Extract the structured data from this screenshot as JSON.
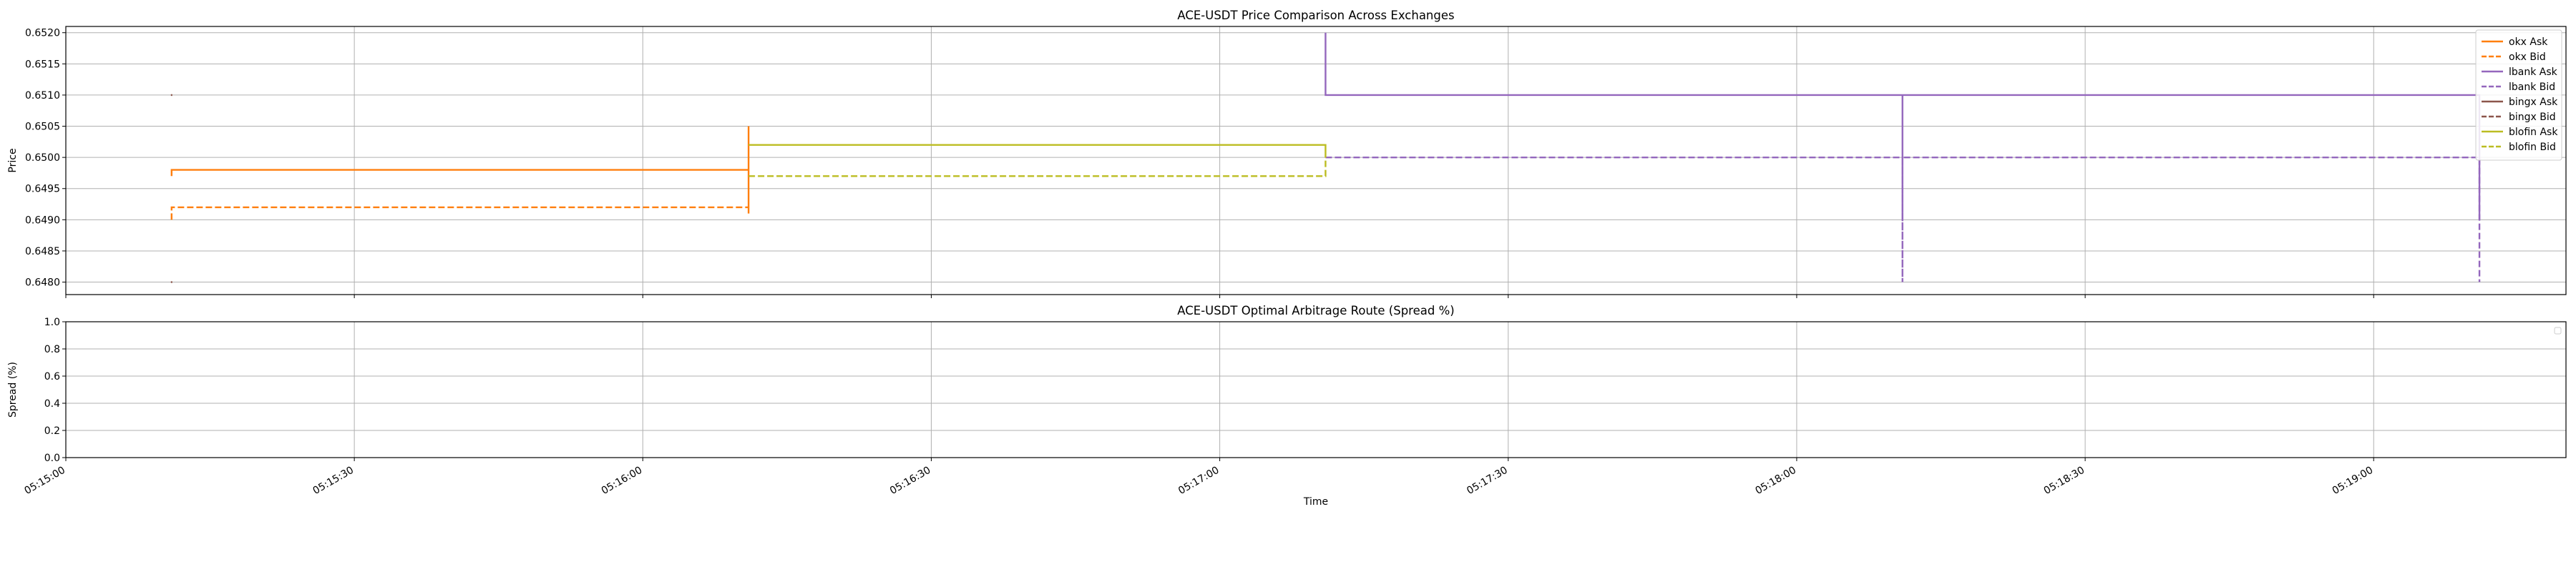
{
  "chart_data": [
    {
      "type": "line",
      "step": true,
      "title": "ACE-USDT Price Comparison Across Exchanges",
      "xlabel": "",
      "ylabel": "Price",
      "xlim": [
        "05:15:00",
        "05:19:20"
      ],
      "ylim": [
        0.6478,
        0.6521
      ],
      "yticks": [
        0.648,
        0.6485,
        0.649,
        0.6495,
        0.65,
        0.6505,
        0.651,
        0.6515,
        0.652
      ],
      "ytick_labels": [
        "0.6480",
        "0.6485",
        "0.6490",
        "0.6495",
        "0.6500",
        "0.6505",
        "0.6510",
        "0.6515",
        "0.6520"
      ],
      "xticks": [
        "05:15:00",
        "05:15:30",
        "05:16:00",
        "05:16:30",
        "05:17:00",
        "05:17:30",
        "05:18:00",
        "05:18:30",
        "05:19:00"
      ],
      "grid": true,
      "legend": "top-right",
      "series": [
        {
          "name": "okx Ask",
          "color": "#ff7f0e",
          "dash": "solid",
          "points": [
            [
              "05:15:11",
              0.6497
            ],
            [
              "05:15:11",
              0.6498
            ],
            [
              "05:16:11",
              0.6498
            ],
            [
              "05:16:11",
              0.6505
            ],
            [
              "05:16:11",
              0.6491
            ]
          ]
        },
        {
          "name": "okx Bid",
          "color": "#ff7f0e",
          "dash": "dashed",
          "points": [
            [
              "05:15:11",
              0.649
            ],
            [
              "05:15:11",
              0.6492
            ],
            [
              "05:16:11",
              0.6492
            ]
          ]
        },
        {
          "name": "lbank Ask",
          "color": "#9467bd",
          "dash": "solid",
          "points": [
            [
              "05:17:11",
              0.652
            ],
            [
              "05:17:11",
              0.651
            ],
            [
              "05:18:11",
              0.651
            ],
            [
              "05:18:11",
              0.649
            ],
            [
              "05:18:11",
              0.651
            ],
            [
              "05:19:11",
              0.651
            ],
            [
              "05:19:11",
              0.649
            ]
          ]
        },
        {
          "name": "lbank Bid",
          "color": "#9467bd",
          "dash": "dashed",
          "points": [
            [
              "05:17:11",
              0.65
            ],
            [
              "05:18:11",
              0.65
            ],
            [
              "05:18:11",
              0.648
            ],
            [
              "05:18:11",
              0.65
            ],
            [
              "05:19:11",
              0.65
            ],
            [
              "05:19:11",
              0.648
            ]
          ]
        },
        {
          "name": "bingx Ask",
          "color": "#8c564b",
          "dash": "solid",
          "points": [
            [
              "05:15:11",
              0.651
            ]
          ]
        },
        {
          "name": "bingx Bid",
          "color": "#8c564b",
          "dash": "dashed",
          "points": [
            [
              "05:15:11",
              0.648
            ]
          ]
        },
        {
          "name": "blofin Ask",
          "color": "#bcbd22",
          "dash": "solid",
          "points": [
            [
              "05:16:11",
              0.6502
            ],
            [
              "05:17:11",
              0.6502
            ],
            [
              "05:17:11",
              0.65
            ]
          ]
        },
        {
          "name": "blofin Bid",
          "color": "#bcbd22",
          "dash": "dashed",
          "points": [
            [
              "05:16:11",
              0.6497
            ],
            [
              "05:17:11",
              0.6497
            ],
            [
              "05:17:11",
              0.65
            ]
          ]
        }
      ]
    },
    {
      "type": "line",
      "title": "ACE-USDT Optimal Arbitrage Route (Spread %)",
      "xlabel": "Time",
      "ylabel": "Spread (%)",
      "xlim": [
        "05:15:00",
        "05:19:20"
      ],
      "ylim": [
        0.0,
        1.0
      ],
      "yticks": [
        0.0,
        0.2,
        0.4,
        0.6,
        0.8,
        1.0
      ],
      "ytick_labels": [
        "0.0",
        "0.2",
        "0.4",
        "0.6",
        "0.8",
        "1.0"
      ],
      "xticks": [
        "05:15:00",
        "05:15:30",
        "05:16:00",
        "05:16:30",
        "05:17:00",
        "05:17:30",
        "05:18:00",
        "05:18:30",
        "05:19:00"
      ],
      "grid": true,
      "legend": "top-right",
      "series": []
    }
  ]
}
